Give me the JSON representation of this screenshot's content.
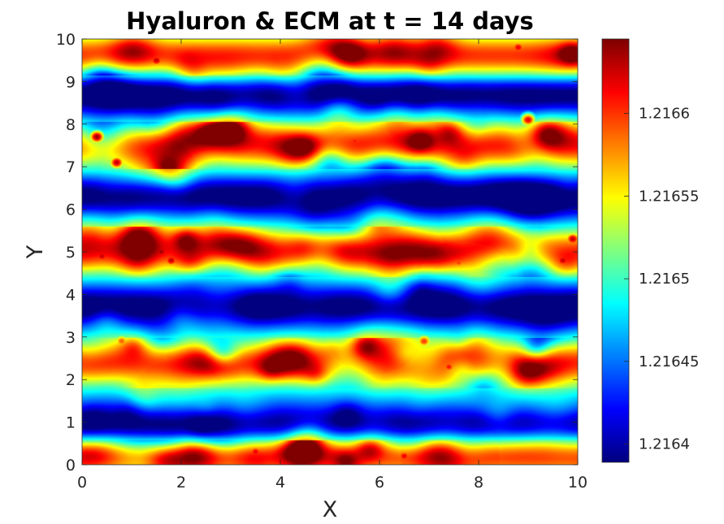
{
  "chart_data": {
    "type": "heatmap",
    "title": "Hyaluron & ECM at t = 14 days",
    "xlabel": "X",
    "ylabel": "Y",
    "xlim": [
      0,
      10
    ],
    "ylim": [
      0,
      10
    ],
    "xticks": [
      "0",
      "2",
      "4",
      "6",
      "8",
      "10"
    ],
    "yticks": [
      "0",
      "1",
      "2",
      "3",
      "4",
      "5",
      "6",
      "7",
      "8",
      "9",
      "10"
    ],
    "colormap": "jet",
    "grid": false,
    "colorbar": {
      "placement": "right",
      "clim": [
        1.216389,
        1.216645
      ],
      "ticks": [
        1.2164,
        1.21645,
        1.2165,
        1.21655,
        1.2166
      ],
      "tick_labels": [
        "1.2164",
        "1.21645",
        "1.2165",
        "1.21655",
        "1.2166"
      ]
    },
    "field_description": {
      "low_bands_y": [
        0.9,
        3.7,
        6.3,
        8.7
      ],
      "high_bands_y": [
        0.2,
        2.4,
        5.0,
        7.5,
        9.6
      ],
      "hotspots": [
        {
          "x": 0.3,
          "y": 7.7,
          "value": 1.21664
        },
        {
          "x": 0.7,
          "y": 7.1,
          "value": 1.21663
        },
        {
          "x": 0.95,
          "y": 9.85,
          "value": 1.21662
        },
        {
          "x": 1.5,
          "y": 9.5,
          "value": 1.21663
        },
        {
          "x": 0.4,
          "y": 4.9,
          "value": 1.21663
        },
        {
          "x": 1.6,
          "y": 5.0,
          "value": 1.21664
        },
        {
          "x": 1.8,
          "y": 4.8,
          "value": 1.21663
        },
        {
          "x": 3.2,
          "y": 5.3,
          "value": 1.21662
        },
        {
          "x": 4.0,
          "y": 7.45,
          "value": 1.21662
        },
        {
          "x": 4.6,
          "y": 7.4,
          "value": 1.21662
        },
        {
          "x": 5.5,
          "y": 7.6,
          "value": 1.21661
        },
        {
          "x": 8.8,
          "y": 9.8,
          "value": 1.21662
        },
        {
          "x": 9.0,
          "y": 8.1,
          "value": 1.21662
        },
        {
          "x": 9.7,
          "y": 4.8,
          "value": 1.21663
        },
        {
          "x": 9.9,
          "y": 5.3,
          "value": 1.21663
        },
        {
          "x": 3.5,
          "y": 0.3,
          "value": 1.21662
        },
        {
          "x": 6.5,
          "y": 0.2,
          "value": 1.21662
        },
        {
          "x": 7.4,
          "y": 2.3,
          "value": 1.21661
        },
        {
          "x": 6.9,
          "y": 2.9,
          "value": 1.2166
        },
        {
          "x": 0.8,
          "y": 2.9,
          "value": 1.21659
        },
        {
          "x": 7.6,
          "y": 4.75,
          "value": 1.2166
        }
      ]
    }
  }
}
